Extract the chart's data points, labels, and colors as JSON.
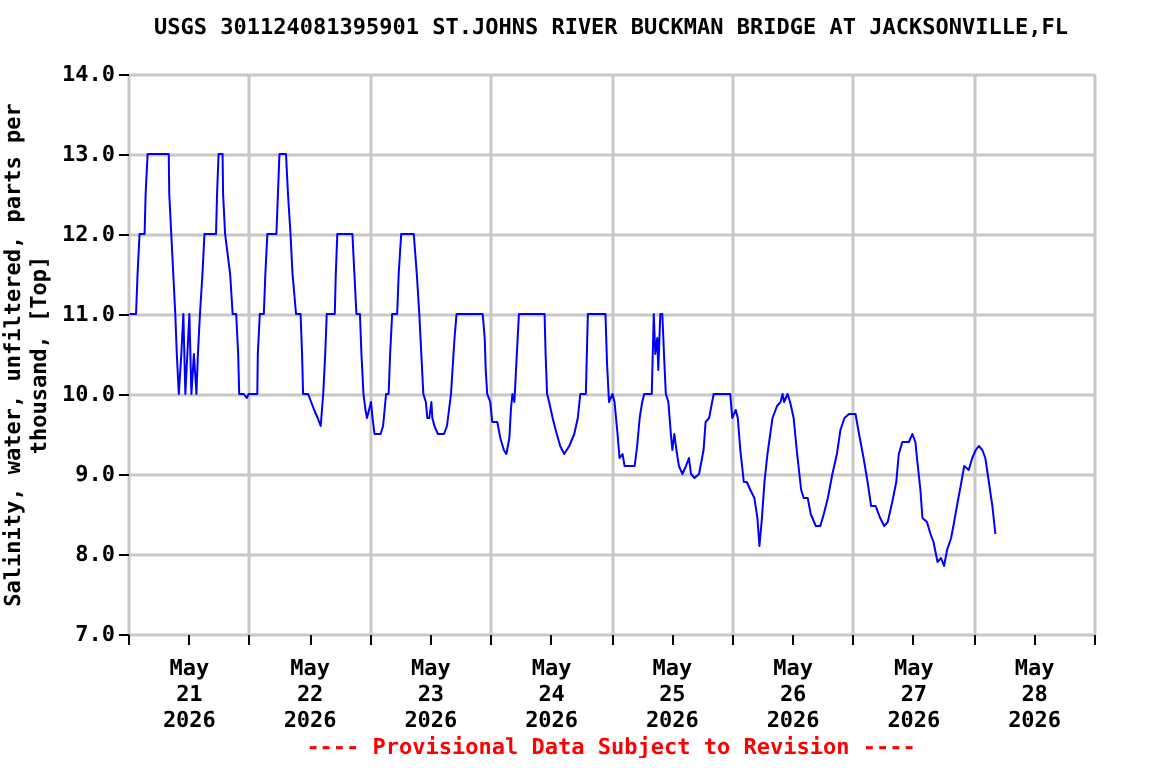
{
  "chart_data": {
    "type": "line",
    "title": "USGS 301124081395901 ST.JOHNS RIVER BUCKMAN BRIDGE AT JACKSONVILLE,FL",
    "ylabel": "Salinity, water, unfiltered, parts per\nthousand, [Top]",
    "annotations": [
      "---- Provisional Data Subject to Revision ----"
    ],
    "grid": true,
    "xlim": [
      "2026-05-21T00:00",
      "2026-05-29T00:00"
    ],
    "xticks": [
      {
        "value": "2026-05-21T00:00",
        "label": null
      },
      {
        "value": "2026-05-21T12:00",
        "label": "May\n21\n2026"
      },
      {
        "value": "2026-05-22T00:00",
        "label": null
      },
      {
        "value": "2026-05-22T12:00",
        "label": "May\n22\n2026"
      },
      {
        "value": "2026-05-23T00:00",
        "label": null
      },
      {
        "value": "2026-05-23T12:00",
        "label": "May\n23\n2026"
      },
      {
        "value": "2026-05-24T00:00",
        "label": null
      },
      {
        "value": "2026-05-24T12:00",
        "label": "May\n24\n2026"
      },
      {
        "value": "2026-05-25T00:00",
        "label": null
      },
      {
        "value": "2026-05-25T12:00",
        "label": "May\n25\n2026"
      },
      {
        "value": "2026-05-26T00:00",
        "label": null
      },
      {
        "value": "2026-05-26T12:00",
        "label": "May\n26\n2026"
      },
      {
        "value": "2026-05-27T00:00",
        "label": null
      },
      {
        "value": "2026-05-27T12:00",
        "label": "May\n27\n2026"
      },
      {
        "value": "2026-05-28T00:00",
        "label": null
      },
      {
        "value": "2026-05-28T12:00",
        "label": "May\n28\n2026"
      },
      {
        "value": "2026-05-29T00:00",
        "label": null
      }
    ],
    "ylim": [
      7,
      14
    ],
    "yticks": [
      {
        "value": 7,
        "label": "7.0"
      },
      {
        "value": 8,
        "label": "8.0"
      },
      {
        "value": 9,
        "label": "9.0"
      },
      {
        "value": 10,
        "label": "10.0"
      },
      {
        "value": 11,
        "label": "11.0"
      },
      {
        "value": 12,
        "label": "12.0"
      },
      {
        "value": 13,
        "label": "13.0"
      },
      {
        "value": 14,
        "label": "14.0"
      }
    ],
    "series": [
      {
        "color": "#0000ff",
        "x": [
          "2026-05-21T00:18",
          "2026-05-21T01:36",
          "2026-05-21T01:54",
          "2026-05-21T02:18",
          "2026-05-21T03:18",
          "2026-05-21T03:30",
          "2026-05-21T03:54",
          "2026-05-21T08:06",
          "2026-05-21T08:12",
          "2026-05-21T08:36",
          "2026-05-21T09:00",
          "2026-05-21T09:24",
          "2026-05-21T09:42",
          "2026-05-21T10:06",
          "2026-05-21T10:36",
          "2026-05-21T11:00",
          "2026-05-21T11:24",
          "2026-05-21T11:48",
          "2026-05-21T12:12",
          "2026-05-21T12:36",
          "2026-05-21T13:06",
          "2026-05-21T13:36",
          "2026-05-21T13:54",
          "2026-05-21T14:18",
          "2026-05-21T14:48",
          "2026-05-21T15:12",
          "2026-05-21T17:30",
          "2026-05-21T17:42",
          "2026-05-21T18:00",
          "2026-05-21T18:48",
          "2026-05-21T18:54",
          "2026-05-21T19:18",
          "2026-05-21T20:18",
          "2026-05-21T20:48",
          "2026-05-21T21:30",
          "2026-05-21T21:54",
          "2026-05-21T22:06",
          "2026-05-21T23:00",
          "2026-05-21T23:36",
          "2026-05-22T00:00",
          "2026-05-22T01:42",
          "2026-05-22T01:48",
          "2026-05-22T02:12",
          "2026-05-22T03:00",
          "2026-05-22T03:18",
          "2026-05-22T03:42",
          "2026-05-22T05:30",
          "2026-05-22T05:48",
          "2026-05-22T06:06",
          "2026-05-22T07:24",
          "2026-05-22T07:48",
          "2026-05-22T08:18",
          "2026-05-22T08:42",
          "2026-05-22T09:24",
          "2026-05-22T10:18",
          "2026-05-22T10:36",
          "2026-05-22T10:48",
          "2026-05-22T11:48",
          "2026-05-22T12:24",
          "2026-05-22T13:00",
          "2026-05-22T13:42",
          "2026-05-22T14:18",
          "2026-05-22T14:48",
          "2026-05-22T15:12",
          "2026-05-22T15:30",
          "2026-05-22T17:06",
          "2026-05-22T17:18",
          "2026-05-22T17:36",
          "2026-05-22T20:36",
          "2026-05-22T21:00",
          "2026-05-22T21:24",
          "2026-05-22T22:06",
          "2026-05-22T22:24",
          "2026-05-22T22:48",
          "2026-05-22T23:12",
          "2026-05-22T23:30",
          "2026-05-23T00:18",
          "2026-05-23T00:36",
          "2026-05-23T01:00",
          "2026-05-23T02:12",
          "2026-05-23T02:42",
          "2026-05-23T03:18",
          "2026-05-23T03:48",
          "2026-05-23T04:06",
          "2026-05-23T04:30",
          "2026-05-23T05:30",
          "2026-05-23T05:48",
          "2026-05-23T06:18",
          "2026-05-23T08:48",
          "2026-05-23T09:24",
          "2026-05-23T09:54",
          "2026-05-23T10:18",
          "2026-05-23T10:42",
          "2026-05-23T11:12",
          "2026-05-23T11:30",
          "2026-05-23T11:54",
          "2026-05-23T12:18",
          "2026-05-23T12:30",
          "2026-05-23T12:54",
          "2026-05-23T13:36",
          "2026-05-23T14:48",
          "2026-05-23T15:24",
          "2026-05-23T15:48",
          "2026-05-23T16:12",
          "2026-05-23T16:30",
          "2026-05-23T16:54",
          "2026-05-23T17:18",
          "2026-05-23T22:30",
          "2026-05-23T22:54",
          "2026-05-23T23:06",
          "2026-05-23T23:24",
          "2026-05-24T00:00",
          "2026-05-24T00:24",
          "2026-05-24T01:24",
          "2026-05-24T02:00",
          "2026-05-24T02:42",
          "2026-05-24T03:12",
          "2026-05-24T03:48",
          "2026-05-24T04:06",
          "2026-05-24T04:24",
          "2026-05-24T04:48",
          "2026-05-24T05:12",
          "2026-05-24T05:42",
          "2026-05-24T10:48",
          "2026-05-24T11:00",
          "2026-05-24T11:18",
          "2026-05-24T11:42",
          "2026-05-24T12:24",
          "2026-05-24T13:00",
          "2026-05-24T13:54",
          "2026-05-24T14:42",
          "2026-05-24T15:42",
          "2026-05-24T16:42",
          "2026-05-24T17:24",
          "2026-05-24T17:54",
          "2026-05-24T19:00",
          "2026-05-24T19:24",
          "2026-05-24T22:54",
          "2026-05-24T23:12",
          "2026-05-24T23:36",
          "2026-05-25T00:18",
          "2026-05-25T00:42",
          "2026-05-25T01:18",
          "2026-05-25T01:42",
          "2026-05-25T02:18",
          "2026-05-25T02:42",
          "2026-05-25T04:42",
          "2026-05-25T05:12",
          "2026-05-25T05:42",
          "2026-05-25T06:12",
          "2026-05-25T06:36",
          "2026-05-25T08:06",
          "2026-05-25T08:30",
          "2026-05-25T08:48",
          "2026-05-25T09:12",
          "2026-05-25T09:24",
          "2026-05-25T09:48",
          "2026-05-25T10:12",
          "2026-05-25T10:36",
          "2026-05-25T10:54",
          "2026-05-25T11:24",
          "2026-05-25T11:54",
          "2026-05-25T12:12",
          "2026-05-25T12:36",
          "2026-05-25T13:00",
          "2026-05-25T13:30",
          "2026-05-25T14:12",
          "2026-05-25T14:54",
          "2026-05-25T15:30",
          "2026-05-25T15:54",
          "2026-05-25T16:36",
          "2026-05-25T17:30",
          "2026-05-25T18:24",
          "2026-05-25T18:48",
          "2026-05-25T19:30",
          "2026-05-25T20:24",
          "2026-05-25T23:42",
          "2026-05-26T00:06",
          "2026-05-26T00:48",
          "2026-05-26T01:12",
          "2026-05-26T01:42",
          "2026-05-26T02:24",
          "2026-05-26T03:00",
          "2026-05-26T03:42",
          "2026-05-26T04:30",
          "2026-05-26T05:06",
          "2026-05-26T05:30",
          "2026-05-26T06:00",
          "2026-05-26T06:30",
          "2026-05-26T07:06",
          "2026-05-26T08:06",
          "2026-05-26T09:00",
          "2026-05-26T09:42",
          "2026-05-26T10:06",
          "2026-05-26T10:24",
          "2026-05-26T11:06",
          "2026-05-26T11:36",
          "2026-05-26T12:18",
          "2026-05-26T13:00",
          "2026-05-26T13:48",
          "2026-05-26T14:18",
          "2026-05-26T15:06",
          "2026-05-26T15:42",
          "2026-05-26T16:42",
          "2026-05-26T17:36",
          "2026-05-26T18:18",
          "2026-05-26T19:06",
          "2026-05-26T20:00",
          "2026-05-26T20:54",
          "2026-05-26T21:36",
          "2026-05-26T22:24",
          "2026-05-26T23:18",
          "2026-05-27T00:36",
          "2026-05-27T01:18",
          "2026-05-27T02:12",
          "2026-05-27T03:00",
          "2026-05-27T03:42",
          "2026-05-27T04:36",
          "2026-05-27T05:30",
          "2026-05-27T06:18",
          "2026-05-27T07:00",
          "2026-05-27T07:54",
          "2026-05-27T08:42",
          "2026-05-27T09:12",
          "2026-05-27T09:54",
          "2026-05-27T11:12",
          "2026-05-27T11:54",
          "2026-05-27T12:30",
          "2026-05-27T12:54",
          "2026-05-27T13:30",
          "2026-05-27T13:54",
          "2026-05-27T14:48",
          "2026-05-27T15:30",
          "2026-05-27T16:06",
          "2026-05-27T16:54",
          "2026-05-27T17:36",
          "2026-05-27T18:12",
          "2026-05-27T18:48",
          "2026-05-27T19:36",
          "2026-05-27T20:12",
          "2026-05-27T20:54",
          "2026-05-27T21:30",
          "2026-05-27T22:12",
          "2026-05-27T23:06",
          "2026-05-27T23:48",
          "2026-05-28T00:30",
          "2026-05-28T01:06",
          "2026-05-28T01:48",
          "2026-05-28T02:24",
          "2026-05-28T03:06",
          "2026-05-28T03:48",
          "2026-05-28T04:24"
        ],
        "values": [
          11.0,
          11.0,
          11.5,
          12.0,
          12.0,
          12.5,
          13.0,
          13.0,
          12.5,
          12.0,
          11.5,
          11.0,
          10.5,
          10.0,
          10.5,
          11.0,
          10.0,
          10.5,
          11.0,
          10.0,
          10.5,
          10.0,
          10.5,
          11.0,
          11.5,
          12.0,
          12.0,
          12.5,
          13.0,
          13.0,
          12.5,
          12.0,
          11.5,
          11.0,
          11.0,
          10.5,
          10.0,
          10.0,
          9.95,
          10.0,
          10.0,
          10.5,
          11.0,
          11.0,
          11.5,
          12.0,
          12.0,
          12.5,
          13.0,
          13.0,
          12.5,
          12.0,
          11.5,
          11.0,
          11.0,
          10.5,
          10.0,
          10.0,
          9.9,
          9.8,
          9.7,
          9.6,
          10.0,
          10.5,
          11.0,
          11.0,
          11.5,
          12.0,
          12.0,
          11.5,
          11.0,
          11.0,
          10.5,
          10.0,
          9.8,
          9.7,
          9.9,
          9.7,
          9.5,
          9.5,
          9.6,
          10.0,
          10.0,
          10.5,
          11.0,
          11.0,
          11.5,
          12.0,
          12.0,
          11.5,
          11.0,
          10.5,
          10.0,
          9.9,
          9.7,
          9.7,
          9.9,
          9.7,
          9.6,
          9.5,
          9.5,
          9.6,
          9.8,
          10.0,
          10.3,
          10.7,
          11.0,
          11.0,
          10.7,
          10.3,
          10.0,
          9.9,
          9.65,
          9.65,
          9.45,
          9.3,
          9.25,
          9.45,
          9.8,
          10.0,
          9.9,
          10.4,
          11.0,
          11.0,
          10.5,
          10.0,
          9.9,
          9.7,
          9.55,
          9.35,
          9.25,
          9.35,
          9.5,
          9.7,
          10.0,
          10.0,
          11.0,
          11.0,
          10.4,
          9.9,
          10.0,
          9.9,
          9.5,
          9.2,
          9.25,
          9.1,
          9.1,
          9.35,
          9.7,
          9.9,
          10.0,
          10.0,
          11.0,
          10.5,
          10.7,
          10.3,
          11.0,
          11.0,
          10.4,
          10.0,
          9.9,
          9.5,
          9.3,
          9.5,
          9.3,
          9.1,
          9.0,
          9.1,
          9.2,
          9.0,
          8.95,
          9.0,
          9.3,
          9.65,
          9.7,
          10.0,
          10.0,
          9.7,
          9.8,
          9.7,
          9.3,
          8.9,
          8.9,
          8.8,
          8.7,
          8.45,
          8.1,
          8.45,
          8.9,
          9.25,
          9.7,
          9.85,
          9.9,
          10.0,
          9.9,
          10.0,
          9.9,
          9.7,
          9.25,
          8.8,
          8.7,
          8.7,
          8.5,
          8.35,
          8.35,
          8.5,
          8.7,
          9.0,
          9.25,
          9.55,
          9.7,
          9.75,
          9.75,
          9.5,
          9.2,
          8.9,
          8.6,
          8.6,
          8.45,
          8.35,
          8.4,
          8.65,
          8.9,
          9.25,
          9.4,
          9.4,
          9.5,
          9.4,
          9.15,
          8.8,
          8.45,
          8.4,
          8.25,
          8.15,
          7.9,
          7.95,
          7.85,
          8.05,
          8.2,
          8.4,
          8.65,
          8.85,
          9.1,
          9.05,
          9.2,
          9.3,
          9.35,
          9.3,
          9.2,
          8.9,
          8.6,
          8.25
        ]
      }
    ]
  }
}
